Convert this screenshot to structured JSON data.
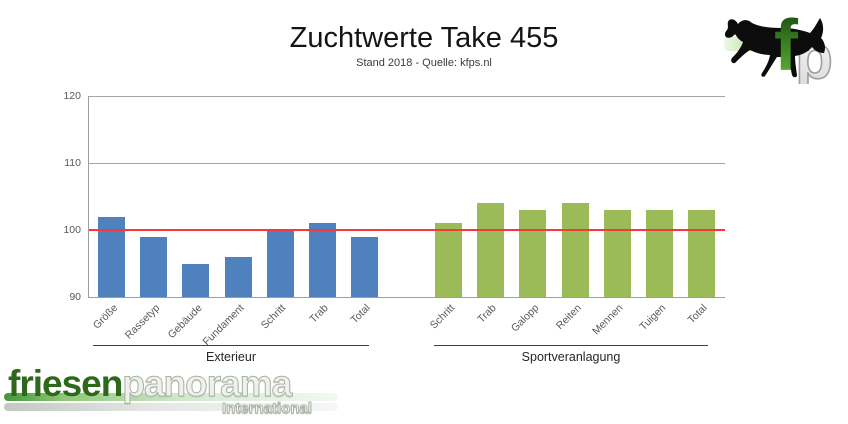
{
  "header": {
    "title": "Zuchtwerte Take 455",
    "subtitle": "Stand 2018 - Quelle: kfps.nl"
  },
  "chart_data": {
    "type": "bar",
    "title": "Zuchtwerte Take 455",
    "subtitle": "Stand 2018 - Quelle: kfps.nl",
    "xlabel": "",
    "ylabel": "",
    "ylim": [
      90,
      120
    ],
    "yticks": [
      90,
      100,
      110,
      120
    ],
    "gridlines": [
      110,
      120
    ],
    "grid": true,
    "legend": "none",
    "reference_line": {
      "value": 100,
      "color": "#f23b38"
    },
    "groups": [
      {
        "name": "Exterieur",
        "color": "#4e81bd",
        "categories": [
          "Größe",
          "Rassetyp",
          "Gebäude",
          "Fundament",
          "Schritt",
          "Trab",
          "Total"
        ],
        "values": [
          102,
          99,
          95,
          96,
          100,
          101,
          99
        ]
      },
      {
        "name": "Sportveranlagung",
        "color": "#9bbb59",
        "categories": [
          "Schritt",
          "Trab",
          "Galopp",
          "Reiten",
          "Mennen",
          "Tuigen",
          "Total"
        ],
        "values": [
          101,
          104,
          103,
          104,
          103,
          103,
          103
        ]
      }
    ]
  },
  "branding": {
    "wordmark": {
      "primary": "friesen",
      "secondary": "panorama",
      "subtext": "International"
    },
    "logo": {
      "f": "f",
      "p": "p"
    },
    "colors": {
      "brand_dark_green": "#2e681b",
      "bar_blue": "#4e81bd",
      "bar_green": "#9bbb59",
      "reference_red": "#f23b38"
    }
  }
}
